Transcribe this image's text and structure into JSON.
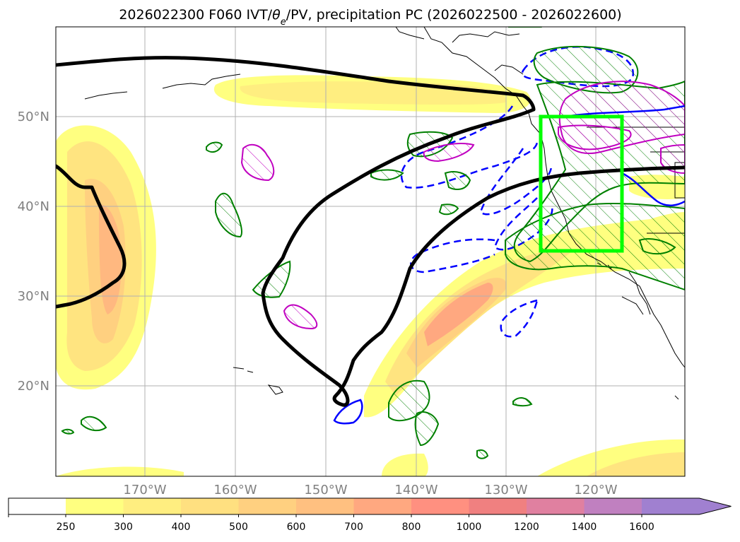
{
  "title": {
    "prefix": "2026022300 F060 IVT/",
    "theta": "θ",
    "theta_sub": "e",
    "suffix": "/PV, precipitation PC (2026022500 - 2026022600)"
  },
  "map": {
    "lat_labels": [
      "50°N",
      "40°N",
      "30°N",
      "20°N"
    ],
    "lon_labels": [
      "170°W",
      "160°W",
      "150°W",
      "140°W",
      "130°W",
      "120°W"
    ],
    "highlight_box_color": "#00ff00"
  },
  "colorbar": {
    "ticks": [
      "250",
      "300",
      "400",
      "500",
      "600",
      "700",
      "800",
      "1000",
      "1200",
      "1400",
      "1600"
    ],
    "colors": [
      "#ffff80",
      "#ffee80",
      "#ffe080",
      "#ffd080",
      "#ffc080",
      "#ffa880",
      "#ff9080",
      "#f08080",
      "#e080a0",
      "#c080c0",
      "#a080d0"
    ]
  },
  "legend_colors": {
    "ivt_fill": "#ffe680",
    "theta_e_contour": "#000000",
    "pv_dashed": "#0000ff",
    "precip_green": "#008000",
    "precip_magenta": "#c000c0"
  }
}
